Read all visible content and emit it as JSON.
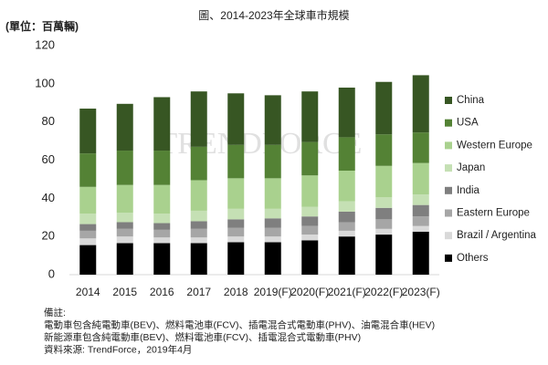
{
  "chart_data": {
    "type": "stacked_bar",
    "title": "圖、2014-2023年全球車市規模",
    "unit_label": "(單位：百萬輛)",
    "watermark": "TRENDFORCE",
    "categories": [
      "2014",
      "2015",
      "2016",
      "2017",
      "2018",
      "2019(F)",
      "2020(F)",
      "2021(F)",
      "2022(F)",
      "2023(F)"
    ],
    "series": [
      {
        "name": "Others",
        "color": "#000000",
        "values": [
          15.5,
          16.5,
          16.5,
          16.5,
          17,
          17,
          18,
          20,
          21,
          22.5
        ]
      },
      {
        "name": "Brazil / Argentina",
        "color": "#d9d9d9",
        "values": [
          3.5,
          3.5,
          3,
          3,
          3,
          3,
          3,
          3,
          3,
          3
        ]
      },
      {
        "name": "Eastern Europe",
        "color": "#a6a6a6",
        "values": [
          4,
          4,
          4,
          4.5,
          4.5,
          4.5,
          4.5,
          4.5,
          5,
          5
        ]
      },
      {
        "name": "India",
        "color": "#7f7f7f",
        "values": [
          3.5,
          3.5,
          3.5,
          4,
          4.5,
          5,
          5,
          5.5,
          6,
          6
        ]
      },
      {
        "name": "Japan",
        "color": "#c5e0b4",
        "values": [
          5.5,
          5,
          5,
          5.5,
          5.5,
          5,
          5,
          5.5,
          5.5,
          5.5
        ]
      },
      {
        "name": "Western Europe",
        "color": "#a9d18e",
        "values": [
          14,
          14.5,
          15,
          16,
          16,
          16,
          16.5,
          16,
          16.5,
          16.5
        ]
      },
      {
        "name": "USA",
        "color": "#548235",
        "values": [
          17.5,
          18,
          18,
          17.5,
          17.5,
          17.5,
          17.5,
          17.5,
          16.5,
          16
        ]
      },
      {
        "name": "China",
        "color": "#375623",
        "values": [
          23.5,
          24.5,
          28,
          29,
          27,
          26,
          26.5,
          26,
          27.5,
          30
        ]
      }
    ],
    "ylim": [
      0,
      120
    ],
    "yticks": [
      0,
      20,
      40,
      60,
      80,
      100,
      120
    ],
    "grid": false,
    "legend": "right",
    "notes": [
      "備註:",
      "電動車包含純電動車(BEV)、燃料電池車(FCV)、插電混合式電動車(PHV)、油電混合車(HEV)",
      "新能源車包含純電動車(BEV)、燃料電池車(FCV)、插電混合式電動車(PHV)",
      "資料來源: TrendForce，2019年4月"
    ]
  }
}
